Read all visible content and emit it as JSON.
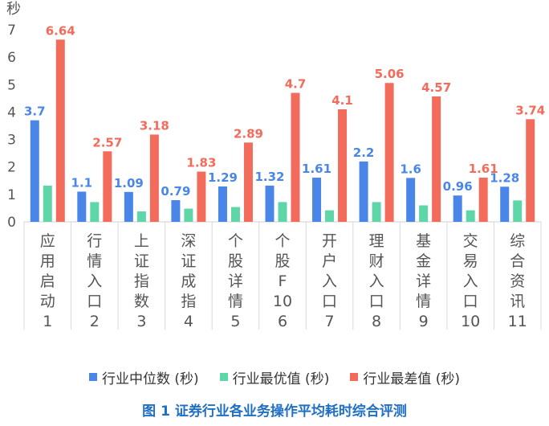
{
  "chart_data": {
    "type": "bar",
    "ylabel": "秒",
    "ylim": [
      0,
      7
    ],
    "yticks": [
      0,
      1,
      2,
      3,
      4,
      5,
      6,
      7
    ],
    "grid": false,
    "legend_position": "bottom",
    "categories": [
      [
        "应",
        "用",
        "启",
        "动",
        "1"
      ],
      [
        "行",
        "情",
        "入",
        "口",
        "2"
      ],
      [
        "上",
        "证",
        "指",
        "数",
        "3"
      ],
      [
        "深",
        "证",
        "成",
        "指",
        "4"
      ],
      [
        "个",
        "股",
        "详",
        "情",
        "5"
      ],
      [
        "个",
        "股",
        "F",
        "10",
        "6"
      ],
      [
        "开",
        "户",
        "入",
        "口",
        "7"
      ],
      [
        "理",
        "财",
        "入",
        "口",
        "8"
      ],
      [
        "基",
        "金",
        "详",
        "情",
        "9"
      ],
      [
        "交",
        "易",
        "入",
        "口",
        "10"
      ],
      [
        "综",
        "合",
        "资",
        "讯",
        "11"
      ]
    ],
    "series": [
      {
        "name": "行业中位数 (秒)",
        "color": "#4a86e8",
        "values": [
          3.7,
          1.1,
          1.09,
          0.79,
          1.29,
          1.32,
          1.61,
          2.2,
          1.6,
          0.96,
          1.28
        ],
        "labels": [
          "3.7",
          "1.1",
          "1.09",
          "0.79",
          "1.29",
          "1.32",
          "1.61",
          "2.2",
          "1.6",
          "0.96",
          "1.28"
        ]
      },
      {
        "name": "行业最优值 (秒)",
        "color": "#5ed6a8",
        "values": [
          1.32,
          0.72,
          0.38,
          0.48,
          0.54,
          0.72,
          0.42,
          0.72,
          0.6,
          0.42,
          0.78
        ],
        "labels": []
      },
      {
        "name": "行业最差值 (秒)",
        "color": "#f26b5b",
        "values": [
          6.64,
          2.57,
          3.18,
          1.83,
          2.89,
          4.7,
          4.1,
          5.06,
          4.57,
          1.61,
          3.74
        ],
        "labels": [
          "6.64",
          "2.57",
          "3.18",
          "1.83",
          "2.89",
          "4.7",
          "4.1",
          "5.06",
          "4.57",
          "1.61",
          "3.74"
        ]
      }
    ]
  },
  "legend": {
    "median": "行业中位数 (秒)",
    "best": "行业最优值 (秒)",
    "worst": "行业最差值 (秒)"
  },
  "caption": "图 1 证券行业各业务操作平均耗时综合评测"
}
